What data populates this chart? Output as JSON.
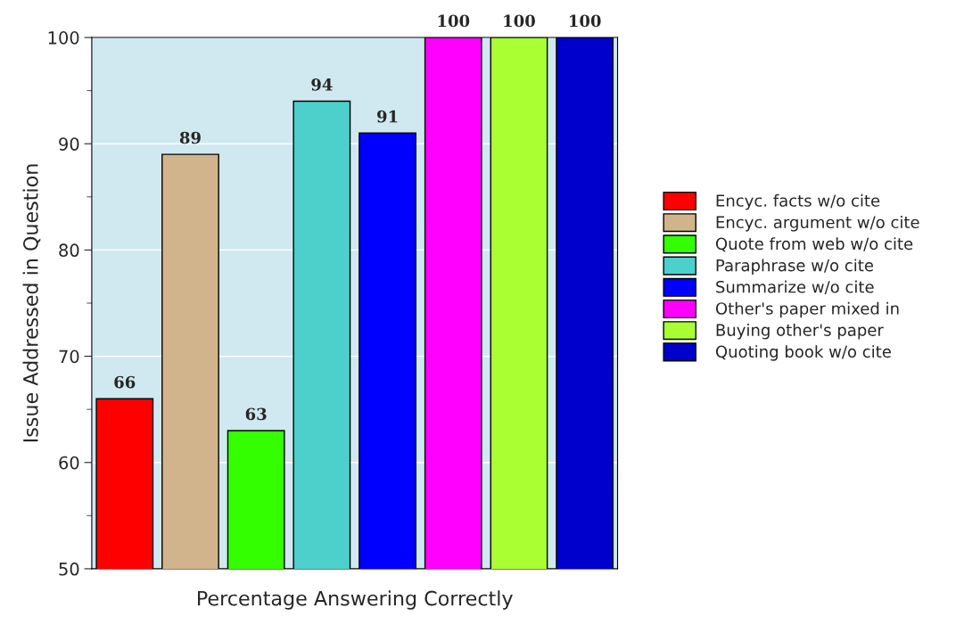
{
  "chart_data": {
    "type": "bar",
    "xlabel": "Percentage Answering Correctly",
    "ylabel": "Issue Addressed in Question",
    "categories": [
      null
    ],
    "series": [
      {
        "name": "Encyc. facts w/o cite",
        "color": "#ff0000",
        "values": [
          66
        ]
      },
      {
        "name": "Encyc. argument w/o cite",
        "color": "#d2b48c",
        "values": [
          89
        ]
      },
      {
        "name": "Quote from web w/o cite",
        "color": "#33ff00",
        "values": [
          63
        ]
      },
      {
        "name": "Paraphrase w/o cite",
        "color": "#4dd0cc",
        "values": [
          94
        ]
      },
      {
        "name": "Summarize w/o cite",
        "color": "#0000ff",
        "values": [
          91
        ]
      },
      {
        "name": "Other's paper mixed in",
        "color": "#ff00ff",
        "values": [
          100
        ]
      },
      {
        "name": "Buying other's paper",
        "color": "#aaff33",
        "values": [
          100
        ]
      },
      {
        "name": "Quoting book w/o cite",
        "color": "#0000cc",
        "values": [
          100
        ]
      }
    ],
    "ylim": [
      50,
      100
    ],
    "yticks": [
      50,
      60,
      70,
      80,
      90,
      100
    ],
    "grid": "y",
    "legend": "right",
    "data_labels": true
  }
}
